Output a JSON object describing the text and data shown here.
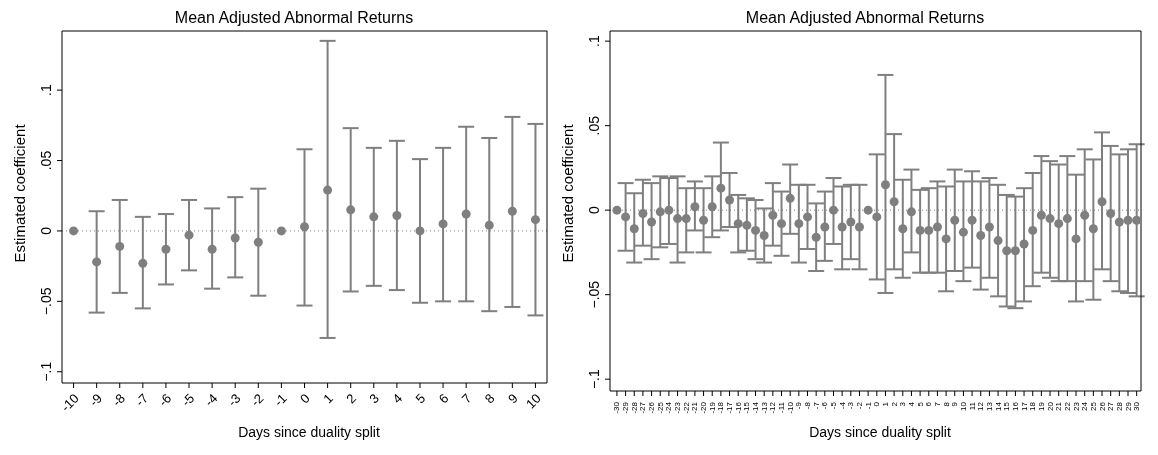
{
  "chart_data": [
    {
      "type": "scatter",
      "title": "Mean Adjusted Abnormal Returns",
      "xlabel": "Days since duality split",
      "ylabel": "Estimated coefficient",
      "color": "#7f7f7f",
      "marker": "circle",
      "x": [
        -10,
        -9,
        -8,
        -7,
        -6,
        -5,
        -4,
        -3,
        -2,
        -1,
        0,
        1,
        2,
        3,
        4,
        5,
        6,
        7,
        8,
        9,
        10
      ],
      "values": [
        0,
        -0.022,
        -0.011,
        -0.023,
        -0.013,
        -0.003,
        -0.013,
        -0.005,
        -0.008,
        0,
        0.003,
        0.029,
        0.015,
        0.01,
        0.011,
        0,
        0.005,
        0.012,
        0.004,
        0.014,
        0.008
      ],
      "errors": [
        null,
        [
          -0.058,
          0.014
        ],
        [
          -0.044,
          0.022
        ],
        [
          -0.055,
          0.01
        ],
        [
          -0.038,
          0.012
        ],
        [
          -0.028,
          0.022
        ],
        [
          -0.041,
          0.016
        ],
        [
          -0.033,
          0.024
        ],
        [
          -0.046,
          0.03
        ],
        null,
        [
          -0.053,
          0.058
        ],
        [
          -0.076,
          0.135
        ],
        [
          -0.043,
          0.073
        ],
        [
          -0.039,
          0.059
        ],
        [
          -0.042,
          0.064
        ],
        [
          -0.051,
          0.051
        ],
        [
          -0.05,
          0.059
        ],
        [
          -0.05,
          0.074
        ],
        [
          -0.057,
          0.066
        ],
        [
          -0.054,
          0.081
        ],
        [
          -0.06,
          0.076
        ]
      ],
      "xlim": [
        -10.5,
        10.5
      ],
      "xticks": [
        -10,
        -9,
        -8,
        -7,
        -6,
        -5,
        -4,
        -3,
        -2,
        -1,
        0,
        1,
        2,
        3,
        4,
        5,
        6,
        7,
        8,
        9,
        10
      ],
      "ylim": [
        -0.108,
        0.142
      ],
      "yticks": [
        {
          "value": -0.1,
          "label": "−.1"
        },
        {
          "value": -0.05,
          "label": "−.05"
        },
        0,
        {
          "value": 0.05,
          "label": ".05"
        },
        {
          "value": 0.1,
          "label": ".1"
        }
      ],
      "ref_lines": [
        {
          "axis": "y",
          "value": 0,
          "line_style": "dotted",
          "color": "#7f7f7f"
        }
      ]
    },
    {
      "type": "scatter",
      "title": "Mean Adjusted Abnormal Returns",
      "xlabel": "Days since duality split",
      "ylabel": "Estimated coefficient",
      "color": "#7f7f7f",
      "marker": "circle",
      "x": [
        -30,
        -29,
        -28,
        -27,
        -26,
        -25,
        -24,
        -23,
        -22,
        -21,
        -20,
        -19,
        -18,
        -17,
        -16,
        -15,
        -14,
        -13,
        -12,
        -11,
        -10,
        -9,
        -8,
        -7,
        -6,
        -5,
        -4,
        -3,
        -2,
        -1,
        0,
        1,
        2,
        3,
        4,
        5,
        6,
        7,
        8,
        9,
        10,
        11,
        12,
        13,
        14,
        15,
        16,
        17,
        18,
        19,
        20,
        21,
        22,
        23,
        24,
        25,
        26,
        27,
        28,
        29,
        30
      ],
      "values": [
        0,
        -0.004,
        -0.011,
        -0.002,
        -0.007,
        -0.001,
        0,
        -0.005,
        -0.005,
        0.002,
        -0.006,
        0.002,
        0.013,
        0.006,
        -0.008,
        -0.009,
        -0.012,
        -0.015,
        -0.003,
        -0.008,
        0.007,
        -0.008,
        -0.004,
        -0.016,
        -0.01,
        0,
        -0.01,
        -0.007,
        -0.01,
        0,
        -0.004,
        0.015,
        0.005,
        -0.011,
        -0.001,
        -0.012,
        -0.012,
        -0.01,
        -0.017,
        -0.006,
        -0.013,
        -0.006,
        -0.015,
        -0.01,
        -0.018,
        -0.024,
        -0.024,
        -0.02,
        -0.012,
        -0.003,
        -0.005,
        -0.008,
        -0.005,
        -0.017,
        -0.003,
        -0.011,
        0.005,
        -0.002,
        -0.007,
        -0.006,
        -0.006
      ],
      "errors": [
        null,
        [
          -0.024,
          0.016
        ],
        [
          -0.031,
          0.01
        ],
        [
          -0.021,
          0.018
        ],
        [
          -0.029,
          0.016
        ],
        [
          -0.022,
          0.02
        ],
        [
          -0.02,
          0.019
        ],
        [
          -0.031,
          0.02
        ],
        [
          -0.025,
          0.013
        ],
        [
          -0.012,
          0.017
        ],
        [
          -0.025,
          0.013
        ],
        [
          -0.016,
          0.02
        ],
        [
          -0.012,
          0.04
        ],
        [
          -0.01,
          0.022
        ],
        [
          -0.025,
          0.009
        ],
        [
          -0.024,
          0.007
        ],
        [
          -0.029,
          0.006
        ],
        [
          -0.031,
          0.001
        ],
        [
          -0.021,
          0.016
        ],
        [
          -0.027,
          0.011
        ],
        [
          -0.014,
          0.027
        ],
        [
          -0.031,
          0.015
        ],
        [
          -0.023,
          0.015
        ],
        [
          -0.036,
          0.004
        ],
        [
          -0.03,
          0.011
        ],
        [
          -0.02,
          0.019
        ],
        [
          -0.035,
          0.014
        ],
        [
          -0.029,
          0.015
        ],
        [
          -0.035,
          0.015
        ],
        null,
        [
          -0.041,
          0.033
        ],
        [
          -0.049,
          0.08
        ],
        [
          -0.035,
          0.045
        ],
        [
          -0.04,
          0.018
        ],
        [
          -0.025,
          0.024
        ],
        [
          -0.037,
          0.012
        ],
        [
          -0.037,
          0.013
        ],
        [
          -0.037,
          0.017
        ],
        [
          -0.048,
          0.014
        ],
        [
          -0.036,
          0.024
        ],
        [
          -0.042,
          0.017
        ],
        [
          -0.034,
          0.023
        ],
        [
          -0.047,
          0.017
        ],
        [
          -0.04,
          0.019
        ],
        [
          -0.051,
          0.015
        ],
        [
          -0.057,
          0.009
        ],
        [
          -0.058,
          0.008
        ],
        [
          -0.054,
          0.013
        ],
        [
          -0.045,
          0.022
        ],
        [
          -0.037,
          0.032
        ],
        [
          -0.04,
          0.029
        ],
        [
          -0.042,
          0.027
        ],
        [
          -0.042,
          0.032
        ],
        [
          -0.054,
          0.021
        ],
        [
          -0.042,
          0.036
        ],
        [
          -0.053,
          0.03
        ],
        [
          -0.035,
          0.046
        ],
        [
          -0.042,
          0.038
        ],
        [
          -0.048,
          0.033
        ],
        [
          -0.049,
          0.036
        ],
        [
          -0.051,
          0.039
        ]
      ],
      "xlim": [
        -30.8,
        30.5
      ],
      "xticks": [
        -30,
        -29,
        -28,
        -27,
        -26,
        -25,
        -24,
        -23,
        -22,
        -21,
        -20,
        -19,
        -18,
        -17,
        -16,
        -15,
        -14,
        -13,
        -12,
        -11,
        -10,
        -9,
        -8,
        -7,
        -6,
        -5,
        -4,
        -3,
        -2,
        -1,
        0,
        1,
        2,
        3,
        4,
        5,
        6,
        7,
        8,
        9,
        10,
        11,
        12,
        13,
        14,
        15,
        16,
        17,
        18,
        19,
        20,
        21,
        22,
        23,
        24,
        25,
        26,
        27,
        28,
        29,
        30
      ],
      "ylim": [
        -0.107,
        0.106
      ],
      "yticks": [
        {
          "value": -0.1,
          "label": "−.1"
        },
        {
          "value": -0.05,
          "label": "−.05"
        },
        0,
        {
          "value": 0.05,
          "label": ".05"
        },
        {
          "value": 0.1,
          "label": ".1"
        }
      ],
      "ref_lines": [
        {
          "axis": "y",
          "value": 0,
          "line_style": "dotted",
          "color": "#7f7f7f"
        }
      ]
    }
  ]
}
